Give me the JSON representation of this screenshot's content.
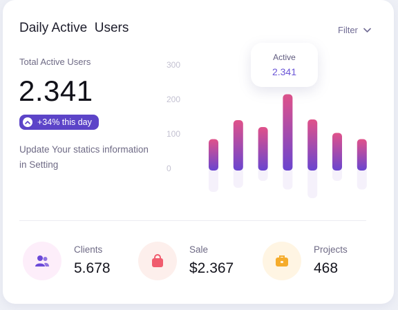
{
  "card": {
    "title": "Daily Active  Users",
    "filter_label": "Filter",
    "total_label": "Total Active Users",
    "total_value": "2.341",
    "badge_text": "+34% this day",
    "description": "Update Your statics information in Setting"
  },
  "tooltip": {
    "label": "Active",
    "value": "2.341"
  },
  "chart_data": {
    "type": "bar",
    "title": "",
    "xlabel": "",
    "ylabel": "",
    "yticks": [
      300,
      200,
      100,
      0
    ],
    "ylim": [
      0,
      300
    ],
    "grid": false,
    "categories": [
      "",
      "",
      "",
      "",
      "",
      "",
      ""
    ],
    "values": [
      85,
      140,
      120,
      215,
      142,
      103,
      85
    ],
    "reflection_values": [
      72,
      60,
      40,
      65,
      90,
      40,
      65
    ],
    "highlight_index": 3,
    "colors": {
      "top": "#e0528a",
      "bottom": "#6a45cf",
      "reflection": "#f5f1fb"
    }
  },
  "stats": [
    {
      "label": "Clients",
      "value": "5.678",
      "icon": "users-icon",
      "bg": "#fdeefa",
      "color": "#6b49d8"
    },
    {
      "label": "Sale",
      "value": "$2.367",
      "icon": "shopping-bag-icon",
      "bg": "#fdefec",
      "color": "#f05c6e"
    },
    {
      "label": "Projects",
      "value": "468",
      "icon": "briefcase-icon",
      "bg": "#fff5e3",
      "color": "#f5ac2b"
    }
  ]
}
